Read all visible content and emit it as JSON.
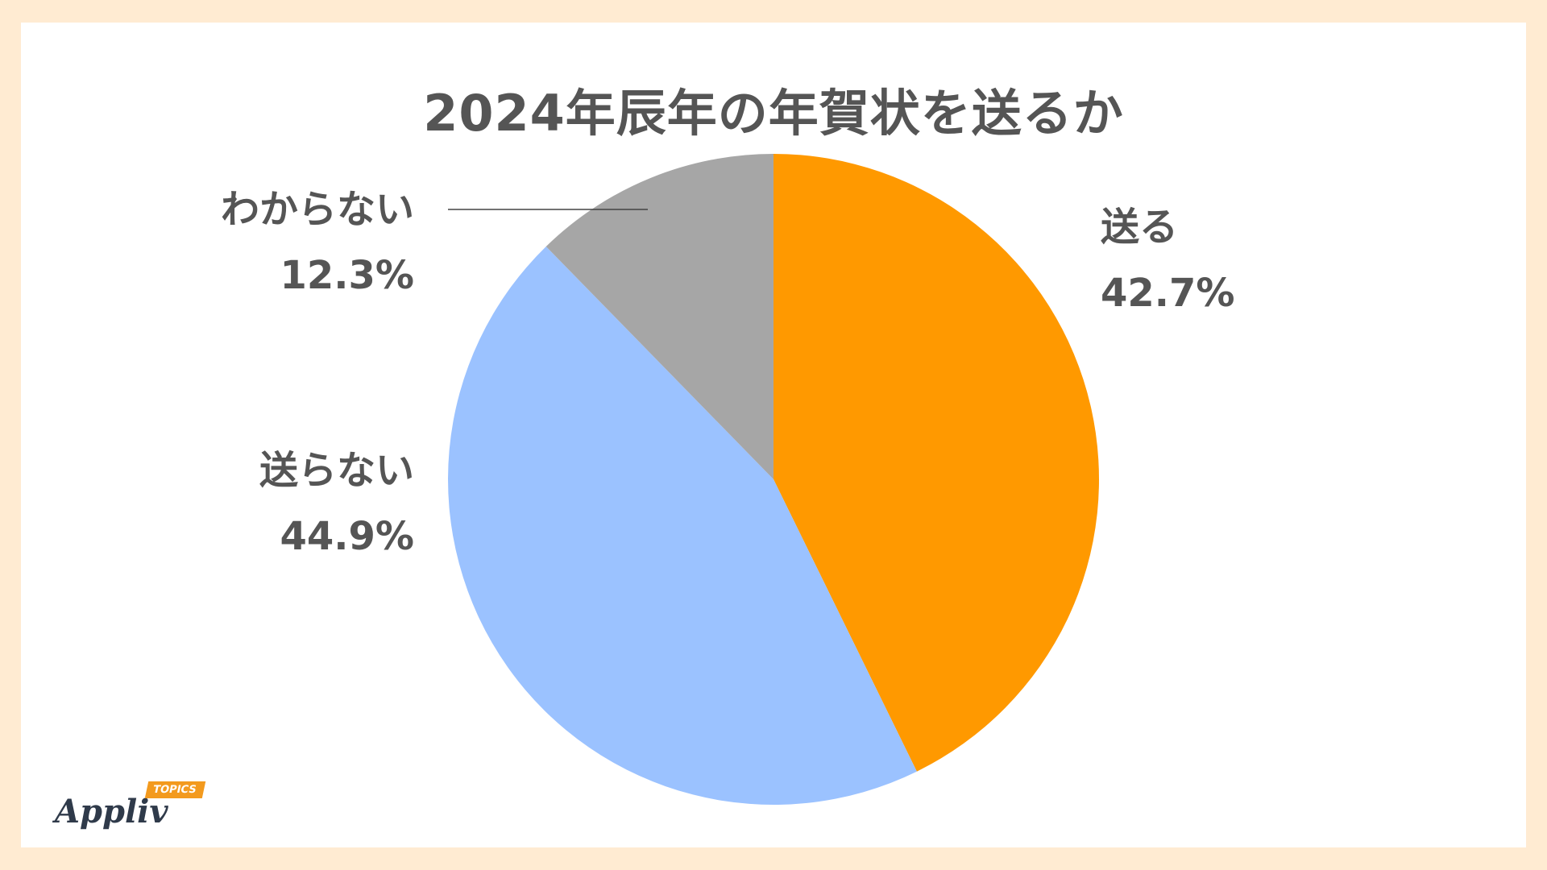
{
  "chart_data": {
    "type": "pie",
    "title": "2024年辰年の年賀状を送るか",
    "slices": [
      {
        "label": "送る",
        "value": 42.7,
        "value_label": "42.7%",
        "color": "#FF9900"
      },
      {
        "label": "送らない",
        "value": 44.9,
        "value_label": "44.9%",
        "color": "#9BC2FF"
      },
      {
        "label": "わからない",
        "value": 12.3,
        "value_label": "12.3%",
        "color": "#A6A6A6"
      }
    ],
    "start_angle": "12 o'clock",
    "direction": "clockwise",
    "legend": "none",
    "data_labels": "outside"
  },
  "branding": {
    "logo_text": "Appliv",
    "logo_tag": "TOPICS"
  }
}
